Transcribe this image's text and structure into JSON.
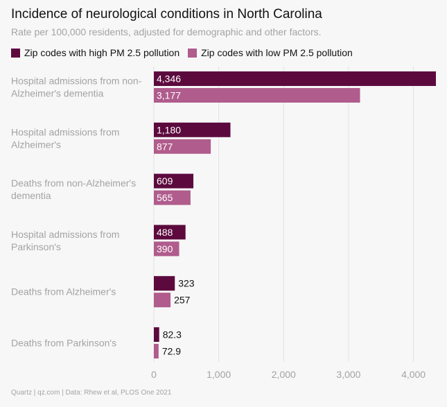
{
  "title": "Incidence of neurological conditions in North Carolina",
  "subtitle": "Rate per 100,000 residents, adjusted for demographic and other factors.",
  "footer": "Quartz | qz.com | Data: Rhew et al, PLOS One 2021",
  "colors": {
    "high": "#5c0a3e",
    "low": "#b05c8c",
    "grid": "#e2e2e2",
    "muted": "#a3a3a3",
    "text": "#111111"
  },
  "legend": [
    {
      "label": "Zip codes with high PM 2.5 pollution",
      "color": "#5c0a3e"
    },
    {
      "label": "Zip codes with low PM 2.5 pollution",
      "color": "#b05c8c"
    }
  ],
  "chart_data": {
    "type": "bar",
    "orientation": "horizontal",
    "categories": [
      [
        "Hospital admissions from non-",
        "Alzheimer's dementia"
      ],
      [
        "Hospital admissions from",
        "Alzheimer's"
      ],
      [
        "Deaths from non-Alzheimer's",
        "dementia"
      ],
      [
        "Hospital admissions from",
        "Parkinson's"
      ],
      [
        "Deaths from Alzheimer's"
      ],
      [
        "Deaths from Parkinson's"
      ]
    ],
    "series": [
      {
        "name": "Zip codes with high PM 2.5 pollution",
        "values": [
          4346,
          1180,
          609,
          488,
          323,
          82.3
        ],
        "labels": [
          "4,346",
          "1,180",
          "609",
          "488",
          "323",
          "82.3"
        ]
      },
      {
        "name": "Zip codes with low PM 2.5 pollution",
        "values": [
          3177,
          877,
          565,
          390,
          257,
          72.9
        ],
        "labels": [
          "3,177",
          "877",
          "565",
          "390",
          "257",
          "72.9"
        ]
      }
    ],
    "xlim": [
      0,
      4346
    ],
    "xticks": [
      0,
      1000,
      2000,
      3000,
      4000
    ],
    "xtick_labels": [
      "0",
      "1,000",
      "2,000",
      "3,000",
      "4,000"
    ],
    "grid": true
  }
}
